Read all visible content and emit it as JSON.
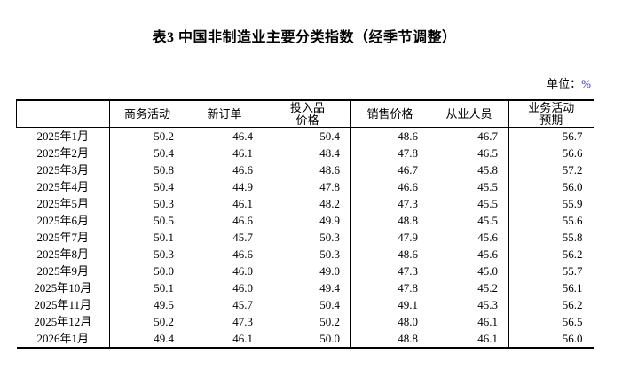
{
  "title": "表3 中国非制造业主要分类指数（经季节调整）",
  "unit": {
    "label": "单位：",
    "value": "%"
  },
  "colors": {
    "text": "#000000",
    "percent_accent": "#3333cc",
    "border": "#000000",
    "background": "#ffffff"
  },
  "table": {
    "columns": [
      "",
      "商务活动",
      "新订单",
      "投入品\n价格",
      "销售价格",
      "从业人员",
      "业务活动\n预期"
    ],
    "rows": [
      {
        "date": "2025年1月",
        "values": [
          "50.2",
          "46.4",
          "50.4",
          "48.6",
          "46.7",
          "56.7"
        ]
      },
      {
        "date": "2025年2月",
        "values": [
          "50.4",
          "46.1",
          "48.4",
          "47.8",
          "46.5",
          "56.6"
        ]
      },
      {
        "date": "2025年3月",
        "values": [
          "50.8",
          "46.6",
          "48.6",
          "46.7",
          "45.8",
          "57.2"
        ]
      },
      {
        "date": "2025年4月",
        "values": [
          "50.4",
          "44.9",
          "47.8",
          "46.6",
          "45.5",
          "56.0"
        ]
      },
      {
        "date": "2025年5月",
        "values": [
          "50.3",
          "46.1",
          "48.2",
          "47.3",
          "45.5",
          "55.9"
        ]
      },
      {
        "date": "2025年6月",
        "values": [
          "50.5",
          "46.6",
          "49.9",
          "48.8",
          "45.5",
          "55.6"
        ]
      },
      {
        "date": "2025年7月",
        "values": [
          "50.1",
          "45.7",
          "50.3",
          "47.9",
          "45.6",
          "55.8"
        ]
      },
      {
        "date": "2025年8月",
        "values": [
          "50.3",
          "46.6",
          "50.3",
          "48.6",
          "45.6",
          "56.2"
        ]
      },
      {
        "date": "2025年9月",
        "values": [
          "50.0",
          "46.0",
          "49.0",
          "47.3",
          "45.0",
          "55.7"
        ]
      },
      {
        "date": "2025年10月",
        "values": [
          "50.1",
          "46.0",
          "49.4",
          "47.8",
          "45.2",
          "56.1"
        ]
      },
      {
        "date": "2025年11月",
        "values": [
          "49.5",
          "45.7",
          "50.4",
          "49.1",
          "45.3",
          "56.2"
        ]
      },
      {
        "date": "2025年12月",
        "values": [
          "50.2",
          "47.3",
          "50.2",
          "48.0",
          "46.1",
          "56.5"
        ]
      },
      {
        "date": "2026年1月",
        "values": [
          "49.4",
          "46.1",
          "50.0",
          "48.8",
          "46.1",
          "56.0"
        ]
      }
    ]
  }
}
